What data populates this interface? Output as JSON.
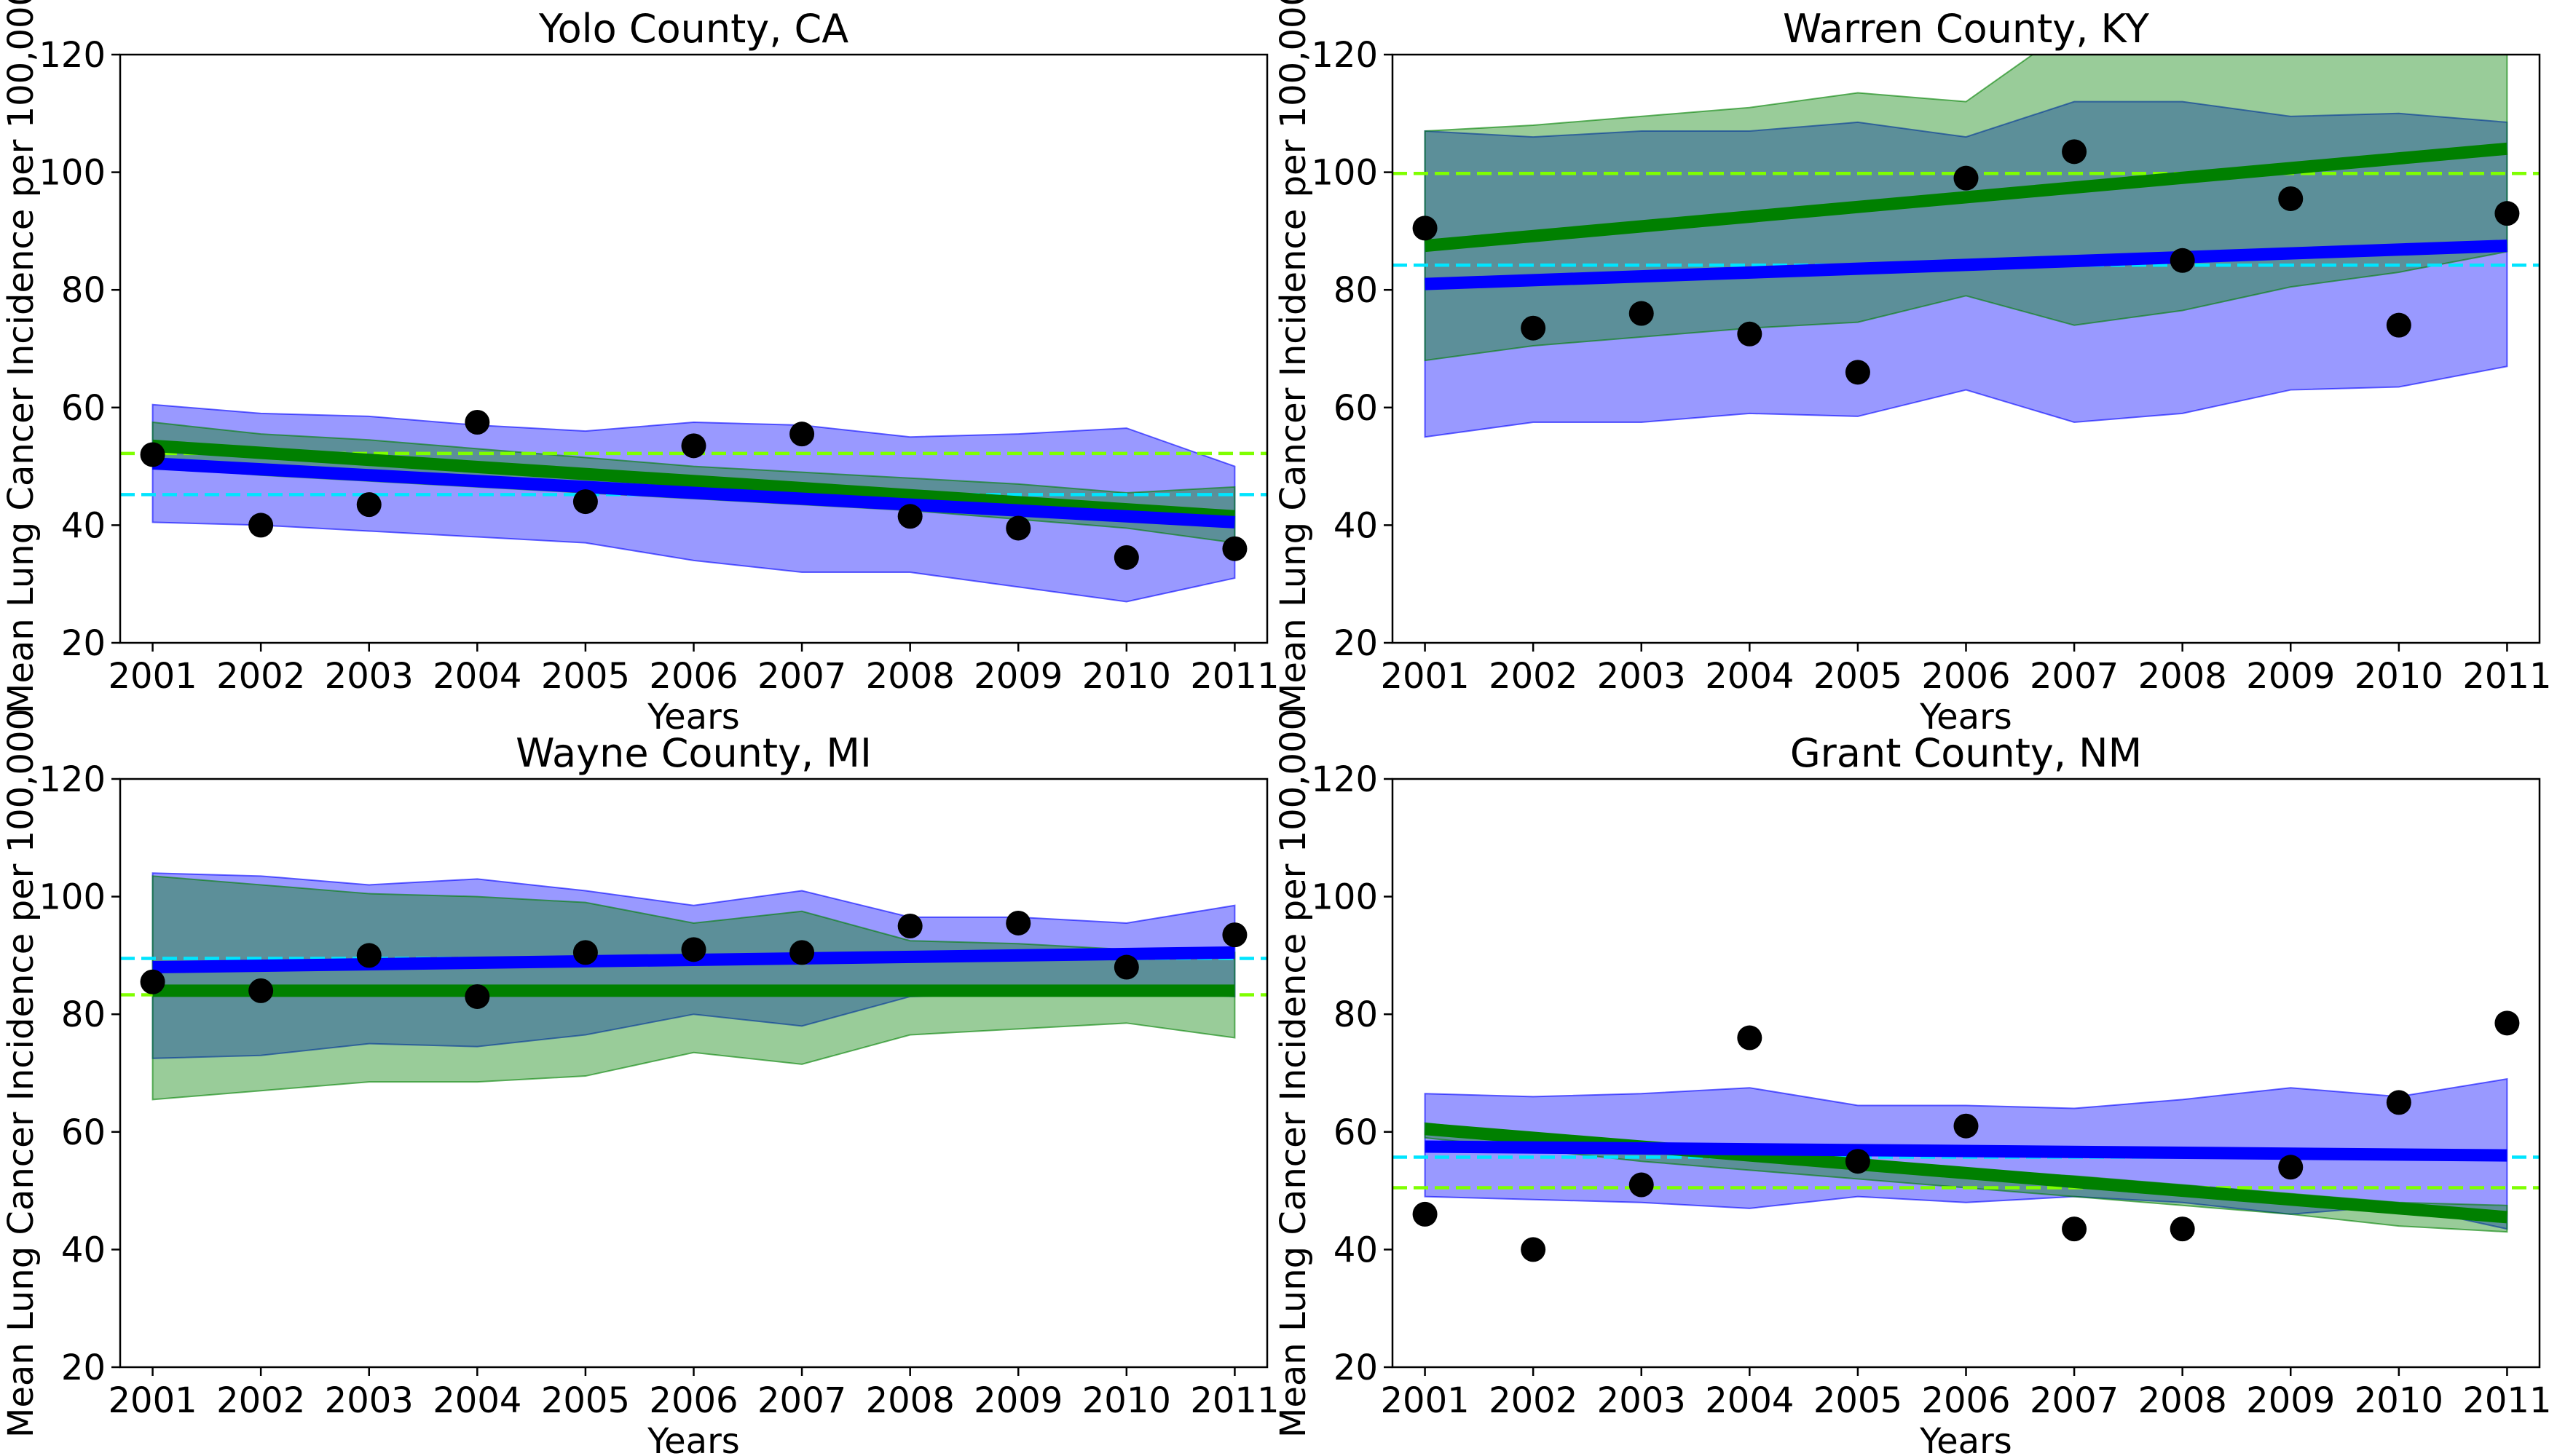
{
  "figure": {
    "background": "#ffffff"
  },
  "colors": {
    "blue_line": "#0000ff",
    "blue_band": "#0000ff",
    "green_line": "#008000",
    "green_band": "#008000",
    "cyan_dashed": "#00e5ff",
    "lime_dashed": "#7fff00",
    "points": "#000000"
  },
  "chart_data": [
    {
      "type": "line",
      "title": "Yolo County, CA",
      "xlabel": "Years",
      "ylabel": "Mean Lung Cancer Incidence per 100,000",
      "x": [
        2001,
        2002,
        2003,
        2004,
        2005,
        2006,
        2007,
        2008,
        2009,
        2010,
        2011
      ],
      "xlim": [
        2000.7,
        2011.3
      ],
      "ylim": [
        20,
        120
      ],
      "yticks": [
        20,
        40,
        60,
        80,
        100,
        120
      ],
      "points": [
        52,
        40,
        43.5,
        57.5,
        44,
        53.5,
        55.5,
        41.5,
        39.5,
        34.5,
        36
      ],
      "blue_line": [
        50.5,
        40.5
      ],
      "green_line": [
        53.5,
        41.5
      ],
      "blue_band": {
        "upper": [
          60.5,
          59,
          58.5,
          57,
          56,
          57.5,
          57,
          55,
          55.5,
          56.5,
          50
        ],
        "lower": [
          40.5,
          40,
          39,
          38,
          37,
          34,
          32,
          32,
          29.5,
          27,
          31
        ]
      },
      "green_band": {
        "upper": [
          57.5,
          55.5,
          54.5,
          53,
          51.5,
          50,
          49,
          48,
          47,
          45.5,
          46.5
        ],
        "lower": [
          50,
          48.5,
          47.5,
          46.5,
          45.5,
          44.5,
          43.5,
          42.5,
          41,
          39.5,
          37
        ]
      },
      "cyan_dashed": 45.2,
      "lime_dashed": 52.2
    },
    {
      "type": "line",
      "title": "Warren County, KY",
      "xlabel": "Years",
      "ylabel": "Mean Lung Cancer Incidence per 100,000",
      "x": [
        2001,
        2002,
        2003,
        2004,
        2005,
        2006,
        2007,
        2008,
        2009,
        2010,
        2011
      ],
      "xlim": [
        2000.7,
        2011.3
      ],
      "ylim": [
        20,
        120
      ],
      "yticks": [
        20,
        40,
        60,
        80,
        100,
        120
      ],
      "points": [
        90.5,
        73.5,
        76,
        72.5,
        66,
        99,
        103.5,
        85,
        95.5,
        74,
        93
      ],
      "blue_line": [
        81,
        87.5
      ],
      "green_line": [
        87.5,
        104
      ],
      "blue_band": {
        "upper": [
          107,
          106,
          107,
          107,
          108.5,
          106,
          112,
          112,
          109.5,
          110,
          108.5
        ],
        "lower": [
          55,
          57.5,
          57.5,
          59,
          58.5,
          63,
          57.5,
          59,
          63,
          63.5,
          67
        ]
      },
      "green_band": {
        "upper": [
          107,
          108,
          109.5,
          111,
          113.5,
          112,
          125,
          125,
          125,
          125,
          125
        ],
        "lower": [
          68,
          70.5,
          72,
          73.5,
          74.5,
          79,
          74,
          76.5,
          80.5,
          83,
          86.5
        ]
      },
      "cyan_dashed": 84.2,
      "lime_dashed": 99.8
    },
    {
      "type": "line",
      "title": "Wayne County, MI",
      "xlabel": "Years",
      "ylabel": "Mean Lung Cancer Incidence per 100,000",
      "x": [
        2001,
        2002,
        2003,
        2004,
        2005,
        2006,
        2007,
        2008,
        2009,
        2010,
        2011
      ],
      "xlim": [
        2000.7,
        2011.3
      ],
      "ylim": [
        20,
        120
      ],
      "yticks": [
        20,
        40,
        60,
        80,
        100,
        120
      ],
      "points": [
        85.5,
        84,
        90,
        83,
        90.5,
        91,
        90.5,
        95,
        95.5,
        88,
        93.5
      ],
      "blue_line": [
        88,
        90.5
      ],
      "green_line": [
        84,
        84
      ],
      "blue_band": {
        "upper": [
          104,
          103.5,
          102,
          103,
          101,
          98.5,
          101,
          96.5,
          96.5,
          95.5,
          98.5
        ],
        "lower": [
          72.5,
          73,
          75,
          74.5,
          76.5,
          80,
          78,
          83,
          83.5,
          84,
          83
        ]
      },
      "green_band": {
        "upper": [
          103.5,
          102,
          100.5,
          100,
          99,
          95.5,
          97.5,
          92.5,
          92,
          91,
          90.5
        ],
        "lower": [
          65.5,
          67,
          68.5,
          68.5,
          69.5,
          73.5,
          71.5,
          76.5,
          77.5,
          78.5,
          76
        ]
      },
      "cyan_dashed": 89.5,
      "lime_dashed": 83.3
    },
    {
      "type": "line",
      "title": "Grant County, NM",
      "xlabel": "Years",
      "ylabel": "Mean Lung Cancer Incidence per 100,000",
      "x": [
        2001,
        2002,
        2003,
        2004,
        2005,
        2006,
        2007,
        2008,
        2009,
        2010,
        2011
      ],
      "xlim": [
        2000.7,
        2011.3
      ],
      "ylim": [
        20,
        120
      ],
      "yticks": [
        20,
        40,
        60,
        80,
        100,
        120
      ],
      "points": [
        46,
        40,
        51,
        76,
        55,
        61,
        43.5,
        43.5,
        54,
        65,
        78.5
      ],
      "blue_line": [
        57.5,
        56
      ],
      "green_line": [
        60.5,
        45.5
      ],
      "blue_band": {
        "upper": [
          66.5,
          66,
          66.5,
          67.5,
          64.5,
          64.5,
          64,
          65.5,
          67.5,
          66,
          69
        ],
        "lower": [
          49,
          48.5,
          48,
          47,
          49,
          48,
          49,
          48,
          46,
          47.5,
          43.5
        ]
      },
      "green_band": {
        "upper": [
          61.5,
          59.5,
          58,
          56.5,
          55,
          53.5,
          52.5,
          51,
          49.5,
          48,
          47.5
        ],
        "lower": [
          59,
          57,
          55,
          53.5,
          52,
          50.5,
          49,
          47.5,
          46,
          44,
          43
        ]
      },
      "cyan_dashed": 55.7,
      "lime_dashed": 50.5
    }
  ]
}
